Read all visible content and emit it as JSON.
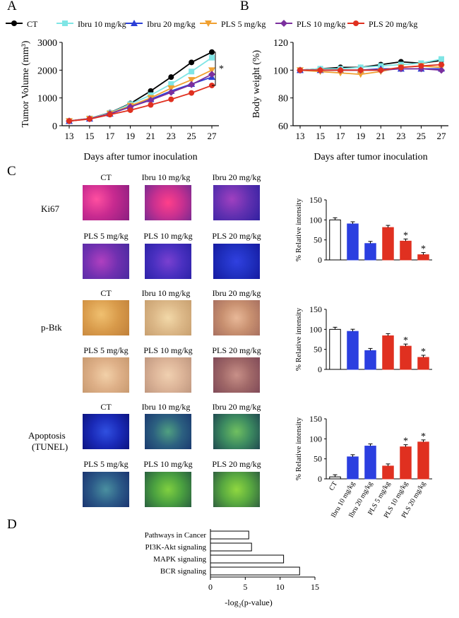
{
  "panels": {
    "a": "A",
    "b": "B",
    "c": "C",
    "d": "D"
  },
  "legend": {
    "items": [
      {
        "label": "CT",
        "color": "#000000",
        "marker": "circle"
      },
      {
        "label": "Ibru 10 mg/kg",
        "color": "#7fe5e5",
        "marker": "square"
      },
      {
        "label": "Ibru 20 mg/kg",
        "color": "#2b3fd6",
        "marker": "triangle"
      },
      {
        "label": "PLS 5 mg/kg",
        "color": "#f0a030",
        "marker": "triangle-down"
      },
      {
        "label": "PLS 10 mg/kg",
        "color": "#7b2f9e",
        "marker": "diamond"
      },
      {
        "label": "PLS 20 mg/kg",
        "color": "#e03020",
        "marker": "circle"
      }
    ]
  },
  "panel_c": {
    "row_labels": {
      "ki67": "Ki67",
      "pbtk": "p-Btk",
      "apoptosis_1": "Apoptosis",
      "apoptosis_2": "(TUNEL)"
    },
    "image_labels": [
      "CT",
      "Ibru 10 mg/kg",
      "Ibru 20 mg/kg",
      "PLS 5 mg/kg",
      "PLS 10 mg/kg",
      "PLS 20 mg/kg"
    ]
  },
  "chart_data": [
    {
      "id": "tumor-volume",
      "type": "line",
      "ylabel": "Tumor Volume (mm³)",
      "xlabel": "Days after tumor inoculation",
      "x": [
        13,
        15,
        17,
        19,
        21,
        23,
        25,
        27
      ],
      "ylim": [
        0,
        3000
      ],
      "yticks": [
        0,
        1000,
        2000,
        3000
      ],
      "annotation": "*",
      "series": [
        {
          "name": "CT",
          "values": [
            170,
            260,
            470,
            800,
            1250,
            1750,
            2280,
            2650
          ]
        },
        {
          "name": "Ibru 10 mg/kg",
          "values": [
            170,
            260,
            460,
            780,
            1100,
            1500,
            1950,
            2450
          ]
        },
        {
          "name": "Ibru 20 mg/kg",
          "values": [
            170,
            250,
            430,
            680,
            950,
            1250,
            1500,
            1750
          ]
        },
        {
          "name": "PLS 5 mg/kg",
          "values": [
            170,
            250,
            440,
            720,
            1000,
            1350,
            1650,
            2000
          ]
        },
        {
          "name": "PLS 10 mg/kg",
          "values": [
            170,
            250,
            430,
            680,
            920,
            1200,
            1480,
            1850
          ]
        },
        {
          "name": "PLS 20 mg/kg",
          "values": [
            170,
            240,
            400,
            560,
            750,
            950,
            1180,
            1450
          ]
        }
      ]
    },
    {
      "id": "body-weight",
      "type": "line",
      "ylabel": "Body weight (%)",
      "xlabel": "Days after tumor inoculation",
      "x": [
        13,
        15,
        17,
        19,
        21,
        23,
        25,
        27
      ],
      "ylim": [
        60,
        120
      ],
      "yticks": [
        60,
        80,
        100,
        120
      ],
      "series": [
        {
          "name": "CT",
          "values": [
            100,
            101,
            102,
            102,
            104,
            106,
            105,
            107
          ]
        },
        {
          "name": "Ibru 10 mg/kg",
          "values": [
            100,
            101,
            101,
            102,
            103,
            104,
            105,
            108
          ]
        },
        {
          "name": "Ibru 20 mg/kg",
          "values": [
            100,
            100,
            100,
            100,
            101,
            101,
            101,
            101
          ]
        },
        {
          "name": "PLS 5 mg/kg",
          "values": [
            100,
            99,
            98,
            97,
            99,
            102,
            103,
            102
          ]
        },
        {
          "name": "PLS 10 mg/kg",
          "values": [
            100,
            100,
            100,
            100,
            100,
            101,
            101,
            100
          ]
        },
        {
          "name": "PLS 20 mg/kg",
          "values": [
            100,
            100,
            100,
            100,
            100,
            102,
            103,
            104
          ]
        }
      ]
    },
    {
      "id": "ki67-bars",
      "type": "bar",
      "ylabel": "% Relative intensity",
      "categories": [
        "CT",
        "Ibru 10 mg/kg",
        "Ibru 20 mg/kg",
        "PLS 5 mg/kg",
        "PLS 10 mg/kg",
        "PLS 20 mg/kg"
      ],
      "values": [
        100,
        90,
        41,
        81,
        47,
        13
      ],
      "colors": [
        "#ffffff",
        "#2b3fe0",
        "#2b3fe0",
        "#e03020",
        "#e03020",
        "#e03020"
      ],
      "significant": [
        false,
        false,
        false,
        false,
        true,
        true
      ],
      "ylim": [
        0,
        150
      ],
      "yticks": [
        0,
        50,
        100,
        150
      ]
    },
    {
      "id": "pbtk-bars",
      "type": "bar",
      "ylabel": "% Relative intensity",
      "categories": [
        "CT",
        "Ibru 10 mg/kg",
        "Ibru 20 mg/kg",
        "PLS 5 mg/kg",
        "PLS 10 mg/kg",
        "PLS 20 mg/kg"
      ],
      "values": [
        100,
        95,
        47,
        84,
        58,
        30
      ],
      "colors": [
        "#ffffff",
        "#2b3fe0",
        "#2b3fe0",
        "#e03020",
        "#e03020",
        "#e03020"
      ],
      "significant": [
        false,
        false,
        false,
        false,
        true,
        true
      ],
      "ylim": [
        0,
        150
      ],
      "yticks": [
        0,
        50,
        100,
        150
      ]
    },
    {
      "id": "apoptosis-bars",
      "type": "bar",
      "ylabel": "% Relative intensity",
      "categories": [
        "CT",
        "Ibru 10 mg/kg",
        "Ibru 20 mg/kg",
        "PLS 5 mg/kg",
        "PLS 10 mg/kg",
        "PLS 20 mg/kg"
      ],
      "values": [
        5,
        55,
        82,
        32,
        80,
        92
      ],
      "colors": [
        "#ffffff",
        "#2b3fe0",
        "#2b3fe0",
        "#e03020",
        "#e03020",
        "#e03020"
      ],
      "significant": [
        false,
        false,
        false,
        false,
        true,
        true
      ],
      "ylim": [
        0,
        150
      ],
      "yticks": [
        0,
        50,
        100,
        150
      ]
    },
    {
      "id": "pathways",
      "type": "bar",
      "orientation": "horizontal",
      "xlabel": "-log₂(p-value)",
      "categories": [
        "Pathways in Cancer",
        "PI3K-Akt signaling",
        "MAPK signaling",
        "BCR signaling"
      ],
      "values": [
        5.5,
        5.9,
        10.5,
        12.8
      ],
      "xlim": [
        0,
        15
      ],
      "xticks": [
        0,
        5,
        10,
        15
      ]
    }
  ]
}
